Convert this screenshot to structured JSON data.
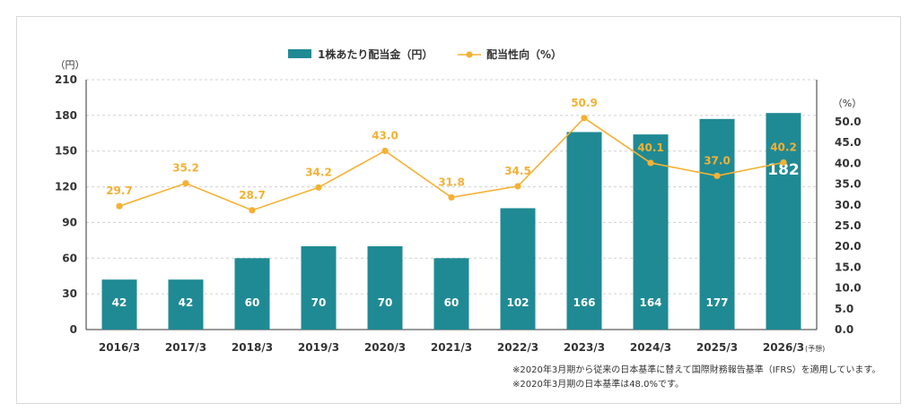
{
  "colors": {
    "bar": "#1f8a94",
    "line": "#f4b133",
    "grid": "#d0d0d0",
    "axis": "#333333",
    "bar_label": "#ffffff"
  },
  "chart_data": {
    "type": "bar",
    "categories": [
      "2016/3",
      "2017/3",
      "2018/3",
      "2019/3",
      "2020/3",
      "2021/3",
      "2022/3",
      "2023/3",
      "2024/3",
      "2025/3",
      "2026/3"
    ],
    "category_suffix": {
      "index": 10,
      "text": "(予想)"
    },
    "series": [
      {
        "name": "1株あたり配当金（円）",
        "type": "bar",
        "axis": "left",
        "values": [
          42,
          42,
          60,
          70,
          70,
          60,
          102,
          166,
          164,
          177,
          182
        ]
      },
      {
        "name": "配当性向（%）",
        "type": "line",
        "axis": "right",
        "values": [
          29.7,
          35.2,
          28.7,
          34.2,
          43.0,
          31.8,
          34.5,
          50.9,
          40.1,
          37.0,
          40.2
        ],
        "labels": [
          "29.7",
          "35.2",
          "28.7",
          "34.2",
          "43.0",
          "31.8",
          "34.5",
          "50.9",
          "40.1",
          "37.0",
          "40.2"
        ]
      }
    ],
    "y_left": {
      "unit_label": "（円）",
      "ylim": [
        0,
        210
      ],
      "ticks": [
        "0",
        "30",
        "60",
        "90",
        "120",
        "150",
        "180",
        "210"
      ]
    },
    "y_right": {
      "unit_label": "（%）",
      "ylim": [
        0,
        60
      ],
      "ticks": [
        "0.0",
        "5.0",
        "10.0",
        "15.0",
        "20.0",
        "25.0",
        "30.0",
        "35.0",
        "40.0",
        "45.0",
        "50.0"
      ]
    },
    "grid": true,
    "legend_position": "top-center"
  },
  "notes": [
    "※2020年3月期から従来の日本基準に替えて国際財務報告基準（IFRS）を適用しています。",
    "※2020年3月期の日本基準は48.0%です。"
  ]
}
